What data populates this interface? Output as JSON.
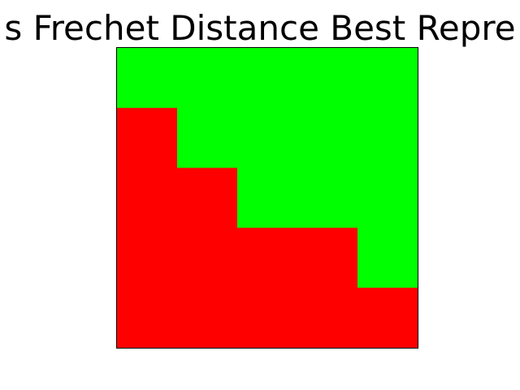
{
  "chart_data": {
    "type": "heatmap",
    "title": "s Frechet Distance Best Repre",
    "xlabel": "",
    "ylabel": "",
    "grid": false,
    "colors": {
      "0": "#00ff00",
      "1": "#ff0000"
    },
    "rows": 5,
    "cols": 5,
    "matrix": [
      [
        0,
        0,
        0,
        0,
        0
      ],
      [
        1,
        0,
        0,
        0,
        0
      ],
      [
        1,
        1,
        0,
        0,
        0
      ],
      [
        1,
        1,
        1,
        1,
        0
      ],
      [
        1,
        1,
        1,
        1,
        1
      ]
    ]
  }
}
